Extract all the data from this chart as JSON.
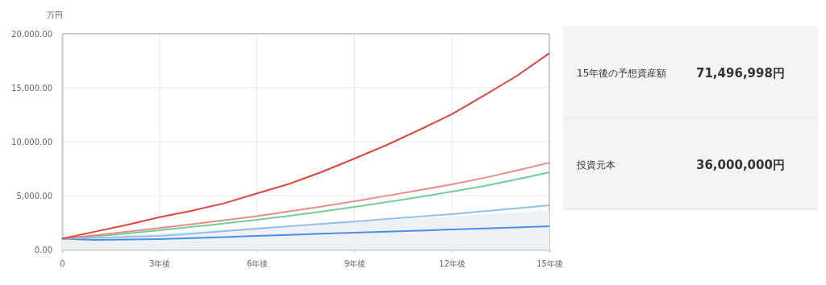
{
  "chart_data": {
    "type": "line",
    "ylabel": "万円",
    "x": [
      0,
      1,
      2,
      3,
      4,
      5,
      6,
      7,
      8,
      9,
      10,
      11,
      12,
      13,
      14,
      15
    ],
    "xlim": [
      0,
      15
    ],
    "xticks": [
      0,
      {
        "value": 3,
        "label": "3年後"
      },
      {
        "value": 6,
        "label": "6年後"
      },
      {
        "value": 9,
        "label": "9年後"
      },
      {
        "value": 12,
        "label": "12年後"
      },
      {
        "value": 15,
        "label": "15年後"
      }
    ],
    "ylim": [
      0,
      20000
    ],
    "yticks": [
      {
        "value": 0,
        "label": "0.00"
      },
      {
        "value": 5000,
        "label": "5,000.00"
      },
      {
        "value": 10000,
        "label": "10,000.00"
      },
      {
        "value": 15000,
        "label": "15,000.00"
      },
      {
        "value": 20000,
        "label": "20,000.00"
      }
    ],
    "grid": true,
    "marker": "none",
    "series": [
      {
        "type": "area",
        "color": "#edf0f5",
        "x": [
          0,
          15
        ],
        "values": [
          1000,
          3600
        ]
      },
      {
        "color": "#4a90e2",
        "values": [
          1000,
          900,
          930,
          970,
          1060,
          1160,
          1270,
          1370,
          1470,
          1570,
          1660,
          1760,
          1860,
          1960,
          2060,
          2160
        ]
      },
      {
        "color": "#90c0f0",
        "values": [
          1000,
          1080,
          1170,
          1270,
          1480,
          1710,
          1940,
          2160,
          2380,
          2600,
          2830,
          3060,
          3290,
          3560,
          3830,
          4100
        ]
      },
      {
        "color": "#6fcf97",
        "values": [
          1000,
          1230,
          1500,
          1800,
          2100,
          2420,
          2760,
          3130,
          3530,
          3950,
          4400,
          4870,
          5370,
          5900,
          6510,
          7160
        ]
      },
      {
        "color": "#f08a84",
        "values": [
          1000,
          1330,
          1660,
          2000,
          2350,
          2720,
          3100,
          3540,
          4000,
          4480,
          4990,
          5500,
          6040,
          6650,
          7330,
          8050
        ]
      },
      {
        "color": "#e0443a",
        "values": [
          1000,
          1650,
          2300,
          3000,
          3600,
          4300,
          5200,
          6100,
          7200,
          8430,
          9700,
          11100,
          12540,
          14300,
          16100,
          18200
        ]
      }
    ],
    "annotations": [
      "15年後の予想資産額",
      "71,496,998円",
      "投資元本",
      "36,000,000円"
    ]
  }
}
